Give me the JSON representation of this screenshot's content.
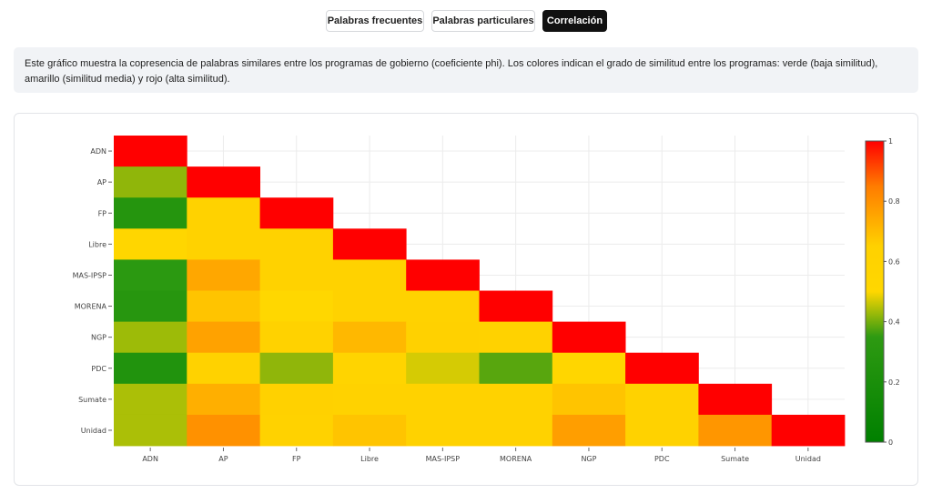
{
  "tabs": [
    {
      "label": "Palabras frecuentes",
      "active": false
    },
    {
      "label": "Palabras particulares",
      "active": false
    },
    {
      "label": "Correlación",
      "active": true
    }
  ],
  "description": "Este gráfico muestra la copresencia de palabras similares entre los programas de gobierno (coeficiente phi). Los colores indican el grado de similitud entre los programas: verde (baja similitud), amarillo (similitud media) y rojo (alta similitud).",
  "chart_data": {
    "type": "heatmap",
    "title": "",
    "xlabel": "",
    "ylabel": "",
    "x": [
      "ADN",
      "AP",
      "FP",
      "Libre",
      "MAS-IPSP",
      "MORENA",
      "NGP",
      "PDC",
      "Sumate",
      "Unidad"
    ],
    "y": [
      "ADN",
      "AP",
      "FP",
      "Libre",
      "MAS-IPSP",
      "MORENA",
      "NGP",
      "PDC",
      "Sumate",
      "Unidad"
    ],
    "z": [
      [
        1.0,
        null,
        null,
        null,
        null,
        null,
        null,
        null,
        null,
        null
      ],
      [
        0.42,
        1.0,
        null,
        null,
        null,
        null,
        null,
        null,
        null,
        null
      ],
      [
        0.28,
        0.62,
        1.0,
        null,
        null,
        null,
        null,
        null,
        null,
        null
      ],
      [
        0.52,
        0.62,
        0.62,
        1.0,
        null,
        null,
        null,
        null,
        null,
        null
      ],
      [
        0.33,
        0.75,
        0.62,
        0.62,
        1.0,
        null,
        null,
        null,
        null,
        null
      ],
      [
        0.3,
        0.68,
        0.51,
        0.62,
        0.62,
        1.0,
        null,
        null,
        null,
        null
      ],
      [
        0.43,
        0.76,
        0.62,
        0.71,
        0.65,
        0.62,
        1.0,
        null,
        null,
        null
      ],
      [
        0.25,
        0.62,
        0.42,
        0.57,
        0.47,
        0.38,
        0.52,
        1.0,
        null,
        null
      ],
      [
        0.44,
        0.73,
        0.64,
        0.62,
        0.62,
        0.62,
        0.68,
        0.62,
        1.0,
        null
      ],
      [
        0.44,
        0.8,
        0.62,
        0.68,
        0.62,
        0.62,
        0.77,
        0.62,
        0.79,
        1.0
      ]
    ],
    "colorscale": [
      [
        0.0,
        "#008000"
      ],
      [
        0.35,
        "#2e9a12"
      ],
      [
        0.5,
        "#ffd700"
      ],
      [
        0.65,
        "#ffd100"
      ],
      [
        0.85,
        "#ff7c00"
      ],
      [
        1.0,
        "#ff0000"
      ]
    ],
    "zlim": [
      0,
      1
    ],
    "colorbar_ticks": [
      "0",
      "0.2",
      "0.4",
      "0.6",
      "0.8",
      "1"
    ],
    "colorbar_placement": "right",
    "grid": true
  }
}
